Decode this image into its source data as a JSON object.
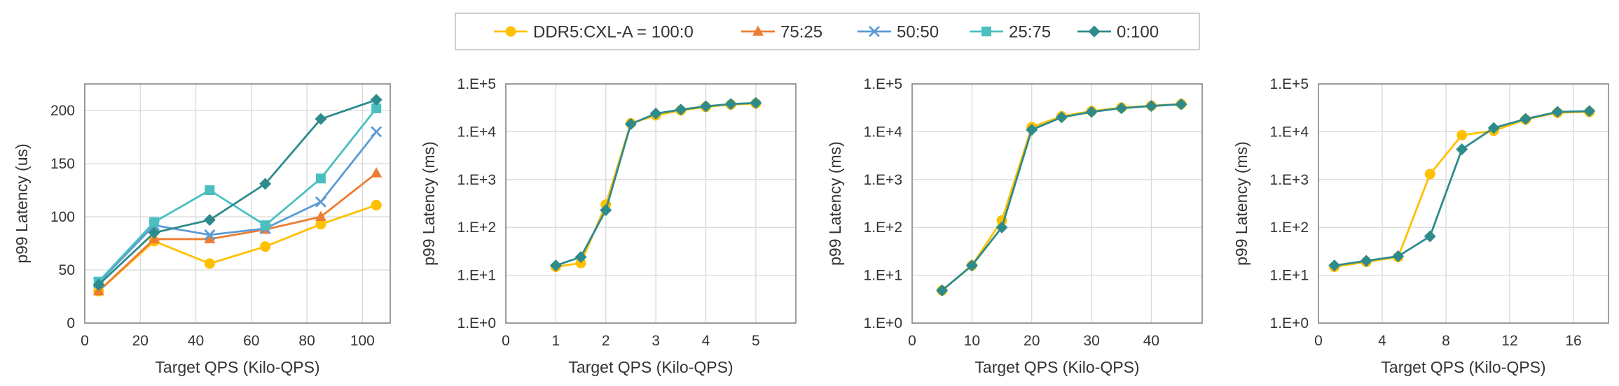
{
  "legend": {
    "items": [
      {
        "label": "DDR5:CXL-A = 100:0",
        "color": "#FFC000",
        "marker": "circle"
      },
      {
        "label": "75:25",
        "color": "#ED7D31",
        "marker": "triangle"
      },
      {
        "label": "50:50",
        "color": "#5B9BD5",
        "marker": "x"
      },
      {
        "label": "25:75",
        "color": "#4BBFBF",
        "marker": "square"
      },
      {
        "label": "0:100",
        "color": "#2E8B8B",
        "marker": "diamond"
      }
    ]
  },
  "chart_data": [
    {
      "type": "line",
      "xlabel": "Target QPS (Kilo-QPS)",
      "ylabel": "p99 Latency (us)",
      "xlim": [
        0,
        110
      ],
      "xticks": [
        0,
        20,
        40,
        60,
        80,
        100
      ],
      "xtick_labels": [
        "0",
        "20",
        "40",
        "60",
        "80",
        "100"
      ],
      "ylim": [
        0,
        225
      ],
      "yscale": "linear",
      "yticks": [
        0,
        50,
        100,
        150,
        200
      ],
      "ytick_labels": [
        "0",
        "50",
        "100",
        "150",
        "200"
      ],
      "grid": true,
      "series": [
        {
          "name": "DDR5:CXL-A = 100:0",
          "x": [
            5,
            25,
            45,
            65,
            85,
            105
          ],
          "y": [
            30,
            77,
            56,
            72,
            93,
            111
          ]
        },
        {
          "name": "75:25",
          "x": [
            5,
            25,
            45,
            65,
            85,
            105
          ],
          "y": [
            30,
            79,
            79,
            88,
            100,
            141
          ]
        },
        {
          "name": "50:50",
          "x": [
            5,
            25,
            45,
            65,
            85,
            105
          ],
          "y": [
            38,
            92,
            83,
            89,
            114,
            180
          ]
        },
        {
          "name": "25:75",
          "x": [
            5,
            25,
            45,
            65,
            85,
            105
          ],
          "y": [
            39,
            95,
            125,
            92,
            136,
            202
          ]
        },
        {
          "name": "0:100",
          "x": [
            5,
            25,
            45,
            65,
            85,
            105
          ],
          "y": [
            36,
            85,
            97,
            131,
            192,
            210
          ]
        }
      ]
    },
    {
      "type": "line",
      "xlabel": "Target QPS (Kilo-QPS)",
      "ylabel": "p99 Latency (ms)",
      "xlim": [
        0,
        5.8
      ],
      "xticks": [
        0,
        1,
        2,
        3,
        4,
        5
      ],
      "xtick_labels": [
        "0",
        "1",
        "2",
        "3",
        "4",
        "5"
      ],
      "ylim": [
        1,
        100000
      ],
      "yscale": "log",
      "yticks": [
        1,
        10,
        100,
        1000,
        10000,
        100000
      ],
      "ytick_labels": [
        "1.E+0",
        "1.E+1",
        "1.E+2",
        "1.E+3",
        "1.E+4",
        "1.E+5"
      ],
      "grid": true,
      "series": [
        {
          "name": "DDR5:CXL-A = 100:0",
          "x": [
            1,
            1.5,
            2,
            2.5,
            3,
            3.5,
            4,
            4.5,
            5
          ],
          "y": [
            15,
            18,
            300,
            15000,
            22000,
            28000,
            33000,
            37000,
            39000
          ]
        },
        {
          "name": "0:100",
          "x": [
            1,
            1.5,
            2,
            2.5,
            3,
            3.5,
            4,
            4.5,
            5
          ],
          "y": [
            16,
            24,
            230,
            14500,
            24000,
            29000,
            34000,
            38000,
            40000
          ]
        }
      ]
    },
    {
      "type": "line",
      "xlabel": "Target QPS (Kilo-QPS)",
      "ylabel": "p99 Latency (ms)",
      "xlim": [
        0,
        48.5
      ],
      "xticks": [
        0,
        10,
        20,
        30,
        40
      ],
      "xtick_labels": [
        "0",
        "10",
        "20",
        "30",
        "40"
      ],
      "ylim": [
        1,
        100000
      ],
      "yscale": "log",
      "yticks": [
        1,
        10,
        100,
        1000,
        10000,
        100000
      ],
      "ytick_labels": [
        "1.E+0",
        "1.E+1",
        "1.E+2",
        "1.E+3",
        "1.E+4",
        "1.E+5"
      ],
      "grid": true,
      "series": [
        {
          "name": "DDR5:CXL-A = 100:0",
          "x": [
            5,
            10,
            15,
            20,
            25,
            30,
            35,
            40,
            45
          ],
          "y": [
            4.8,
            16,
            140,
            12500,
            21000,
            27000,
            32000,
            35000,
            38000
          ]
        },
        {
          "name": "0:100",
          "x": [
            5,
            10,
            15,
            20,
            25,
            30,
            35,
            40,
            45
          ],
          "y": [
            4.8,
            16,
            100,
            11000,
            20000,
            26000,
            31000,
            34500,
            37500
          ]
        }
      ]
    },
    {
      "type": "line",
      "xlabel": "Target QPS (Kilo-QPS)",
      "ylabel": "p99 Latency (ms)",
      "xlim": [
        0,
        18.2
      ],
      "xticks": [
        0,
        4,
        8,
        12,
        16
      ],
      "xtick_labels": [
        "0",
        "4",
        "8",
        "12",
        "16"
      ],
      "ylim": [
        1,
        100000
      ],
      "yscale": "log",
      "yticks": [
        1,
        10,
        100,
        1000,
        10000,
        100000
      ],
      "ytick_labels": [
        "1.E+0",
        "1.E+1",
        "1.E+2",
        "1.E+3",
        "1.E+4",
        "1.E+5"
      ],
      "grid": true,
      "series": [
        {
          "name": "DDR5:CXL-A = 100:0",
          "x": [
            1,
            3,
            5,
            7,
            9,
            11,
            13,
            15,
            17
          ],
          "y": [
            15,
            19,
            24,
            1300,
            8500,
            10500,
            18000,
            25000,
            26000
          ]
        },
        {
          "name": "0:100",
          "x": [
            1,
            3,
            5,
            7,
            9,
            11,
            13,
            15,
            17
          ],
          "y": [
            16,
            20,
            25,
            65,
            4300,
            12000,
            18500,
            26000,
            27000
          ]
        }
      ]
    }
  ]
}
